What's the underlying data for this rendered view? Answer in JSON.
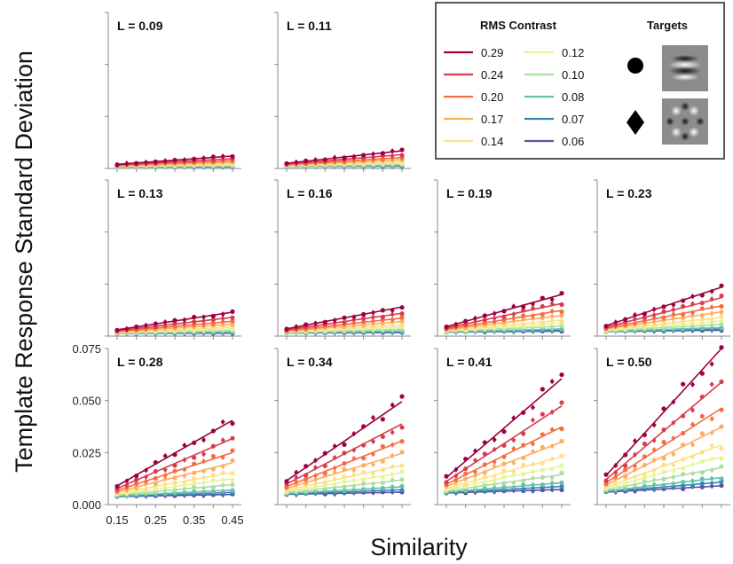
{
  "chart_data": {
    "type": "line",
    "ylabel": "Template Response Standard Deviation",
    "xlabel": "Similarity",
    "x": [
      0.15,
      0.175,
      0.2,
      0.225,
      0.25,
      0.275,
      0.3,
      0.325,
      0.35,
      0.375,
      0.4,
      0.425,
      0.45
    ],
    "xticks": [
      "0.15",
      "0.25",
      "0.35",
      "0.45"
    ],
    "yticks": [
      "0.000",
      "0.025",
      "0.050",
      "0.075"
    ],
    "ylim": [
      0,
      0.075
    ],
    "xlim": [
      0.15,
      0.45
    ],
    "legend": {
      "title": "RMS Contrast",
      "entries": [
        {
          "label": "0.29",
          "color": "#9e0142"
        },
        {
          "label": "0.24",
          "color": "#d53e4f"
        },
        {
          "label": "0.20",
          "color": "#f46d43"
        },
        {
          "label": "0.17",
          "color": "#fdae61"
        },
        {
          "label": "0.14",
          "color": "#fee08b"
        },
        {
          "label": "0.12",
          "color": "#e6f598"
        },
        {
          "label": "0.10",
          "color": "#abdda4"
        },
        {
          "label": "0.08",
          "color": "#66c2a5"
        },
        {
          "label": "0.07",
          "color": "#3288bd"
        },
        {
          "label": "0.06",
          "color": "#5e4fa2"
        }
      ],
      "targets_title": "Targets",
      "targets": [
        "circle",
        "diamond"
      ]
    },
    "contrasts": [
      0.29,
      0.24,
      0.2,
      0.17,
      0.14,
      0.12,
      0.1,
      0.08,
      0.07,
      0.06
    ],
    "panels": [
      {
        "label": "L = 0.09",
        "top_start": 0.002,
        "top_end": 0.006
      },
      {
        "label": "L = 0.11",
        "top_start": 0.0025,
        "top_end": 0.0085
      },
      {
        "label": "L = 0.13",
        "top_start": 0.003,
        "top_end": 0.0115
      },
      {
        "label": "L = 0.16",
        "top_start": 0.0035,
        "top_end": 0.014
      },
      {
        "label": "L = 0.19",
        "top_start": 0.0045,
        "top_end": 0.02
      },
      {
        "label": "L = 0.23",
        "top_start": 0.005,
        "top_end": 0.0235
      },
      {
        "label": "L = 0.28",
        "top_start": 0.009,
        "top_end": 0.0405
      },
      {
        "label": "L = 0.34",
        "top_start": 0.0115,
        "top_end": 0.0495
      },
      {
        "label": "L = 0.41",
        "top_start": 0.013,
        "top_end": 0.0605
      },
      {
        "label": "L = 0.50",
        "top_start": 0.014,
        "top_end": 0.075
      }
    ]
  }
}
